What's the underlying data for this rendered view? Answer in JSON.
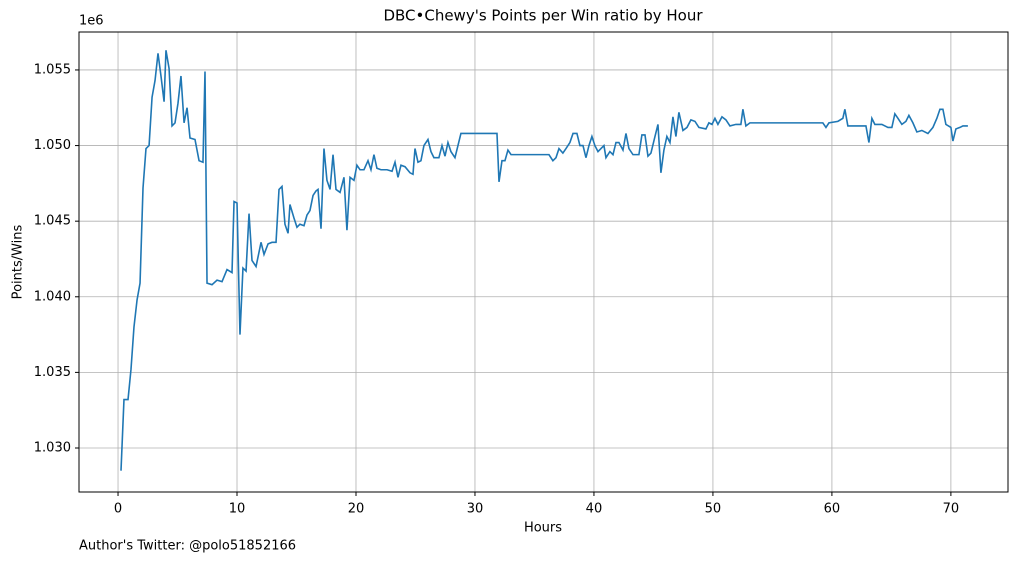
{
  "chart_data": {
    "type": "line",
    "title": "DBC•Chewy's Points per Win ratio by Hour",
    "x_label": "Hours",
    "y_label": "Points/Wins",
    "y_offset_label": "1e6",
    "footer": "Author's Twitter: @polo51852166",
    "grid": true,
    "xlim": [
      -3.28,
      74.8
    ],
    "ylim": [
      1.02709,
      1.05751
    ],
    "xticks": [
      0,
      10,
      20,
      30,
      40,
      50,
      60,
      70
    ],
    "yticks": [
      {
        "value": 1.03,
        "label": "1.030"
      },
      {
        "value": 1.035,
        "label": "1.035"
      },
      {
        "value": 1.04,
        "label": "1.040"
      },
      {
        "value": 1.045,
        "label": "1.045"
      },
      {
        "value": 1.05,
        "label": "1.050"
      },
      {
        "value": 1.055,
        "label": "1.055"
      }
    ],
    "series": [
      {
        "color": "#1f77b4",
        "x": [
          0.25,
          0.5,
          0.84,
          1.09,
          1.34,
          1.6,
          1.85,
          2.1,
          2.35,
          2.61,
          2.86,
          3.11,
          3.36,
          3.61,
          3.87,
          4.03,
          4.29,
          4.54,
          4.79,
          5.04,
          5.29,
          5.55,
          5.8,
          6.05,
          6.47,
          6.81,
          7.14,
          7.31,
          7.48,
          7.9,
          8.32,
          8.74,
          9.16,
          9.58,
          9.75,
          10.0,
          10.25,
          10.5,
          10.76,
          11.01,
          11.26,
          11.6,
          12.02,
          12.27,
          12.61,
          12.94,
          13.28,
          13.53,
          13.78,
          14.03,
          14.29,
          14.45,
          14.79,
          15.04,
          15.29,
          15.63,
          15.88,
          16.13,
          16.39,
          16.64,
          16.81,
          17.06,
          17.31,
          17.56,
          17.82,
          18.07,
          18.32,
          18.66,
          18.99,
          19.24,
          19.5,
          19.83,
          20.08,
          20.34,
          20.67,
          21.01,
          21.26,
          21.51,
          21.76,
          22.1,
          22.61,
          23.03,
          23.28,
          23.53,
          23.78,
          24.12,
          24.54,
          24.79,
          24.96,
          25.21,
          25.46,
          25.71,
          26.05,
          26.3,
          26.55,
          26.97,
          27.23,
          27.48,
          27.73,
          27.98,
          28.32,
          28.57,
          28.82,
          31.85,
          32.02,
          32.27,
          32.52,
          32.77,
          33.03,
          36.22,
          36.55,
          36.81,
          37.06,
          37.39,
          37.65,
          37.98,
          38.24,
          38.57,
          38.82,
          39.08,
          39.33,
          39.58,
          39.83,
          40.08,
          40.34,
          40.59,
          40.84,
          41.01,
          41.34,
          41.6,
          41.85,
          42.1,
          42.44,
          42.69,
          42.94,
          43.28,
          43.78,
          44.03,
          44.29,
          44.54,
          44.79,
          45.13,
          45.38,
          45.63,
          45.88,
          46.13,
          46.39,
          46.64,
          46.89,
          47.14,
          47.48,
          47.82,
          48.15,
          48.49,
          48.82,
          49.41,
          49.66,
          49.92,
          50.17,
          50.42,
          50.76,
          51.09,
          51.43,
          51.93,
          52.35,
          52.52,
          52.77,
          53.11,
          59.24,
          59.5,
          59.75,
          60.5,
          60.92,
          61.09,
          61.34,
          62.86,
          63.11,
          63.36,
          63.61,
          64.2,
          64.71,
          65.04,
          65.29,
          65.55,
          65.88,
          66.22,
          66.47,
          66.81,
          67.14,
          67.56,
          68.07,
          68.49,
          68.82,
          69.08,
          69.33,
          69.58,
          70.0,
          70.17,
          70.42,
          70.76,
          71.01,
          71.43
        ],
        "values": [
          1.0285,
          1.0332,
          1.0332,
          1.0352,
          1.038,
          1.0398,
          1.0409,
          1.0472,
          1.0498,
          1.05,
          1.0532,
          1.0543,
          1.0561,
          1.0546,
          1.0529,
          1.0563,
          1.0551,
          1.0513,
          1.0515,
          1.0528,
          1.0546,
          1.0515,
          1.0525,
          1.0505,
          1.0504,
          1.049,
          1.0489,
          1.0549,
          1.0409,
          1.0408,
          1.0411,
          1.041,
          1.0418,
          1.0416,
          1.0463,
          1.0462,
          1.0375,
          1.0419,
          1.0417,
          1.0455,
          1.0424,
          1.042,
          1.0436,
          1.0428,
          1.0435,
          1.0436,
          1.0436,
          1.0471,
          1.0473,
          1.0448,
          1.0442,
          1.0461,
          1.0452,
          1.0446,
          1.0448,
          1.0447,
          1.0454,
          1.0457,
          1.0467,
          1.047,
          1.0471,
          1.0445,
          1.0498,
          1.0477,
          1.0471,
          1.0494,
          1.0471,
          1.0469,
          1.0479,
          1.0444,
          1.0479,
          1.0477,
          1.0487,
          1.0484,
          1.0484,
          1.049,
          1.0484,
          1.0494,
          1.0485,
          1.0484,
          1.0484,
          1.0483,
          1.0489,
          1.0479,
          1.0487,
          1.0486,
          1.0482,
          1.0481,
          1.0498,
          1.0489,
          1.049,
          1.05,
          1.0504,
          1.0496,
          1.0492,
          1.0492,
          1.05,
          1.0493,
          1.0502,
          1.0496,
          1.0492,
          1.05,
          1.0508,
          1.0508,
          1.0476,
          1.049,
          1.049,
          1.0497,
          1.0494,
          1.0494,
          1.049,
          1.0492,
          1.0498,
          1.0495,
          1.0498,
          1.0502,
          1.0508,
          1.0508,
          1.05,
          1.05,
          1.0492,
          1.05,
          1.0506,
          1.05,
          1.0496,
          1.0498,
          1.05,
          1.0492,
          1.0496,
          1.0494,
          1.0502,
          1.0502,
          1.0497,
          1.0508,
          1.0498,
          1.0494,
          1.0494,
          1.0507,
          1.0507,
          1.0493,
          1.0495,
          1.0506,
          1.0514,
          1.0482,
          1.0497,
          1.0506,
          1.0502,
          1.0519,
          1.0506,
          1.0522,
          1.051,
          1.0512,
          1.0517,
          1.0516,
          1.0512,
          1.0511,
          1.0515,
          1.0514,
          1.0518,
          1.0514,
          1.0519,
          1.0517,
          1.0513,
          1.0514,
          1.0514,
          1.0524,
          1.0513,
          1.0515,
          1.0515,
          1.0512,
          1.0515,
          1.0516,
          1.0518,
          1.0524,
          1.0513,
          1.0513,
          1.0502,
          1.0518,
          1.0514,
          1.0514,
          1.0512,
          1.0512,
          1.0521,
          1.0518,
          1.0514,
          1.0516,
          1.052,
          1.0515,
          1.0509,
          1.051,
          1.0508,
          1.0512,
          1.0518,
          1.0524,
          1.0524,
          1.0514,
          1.0512,
          1.0503,
          1.0511,
          1.0512,
          1.0513,
          1.0513
        ]
      }
    ]
  }
}
